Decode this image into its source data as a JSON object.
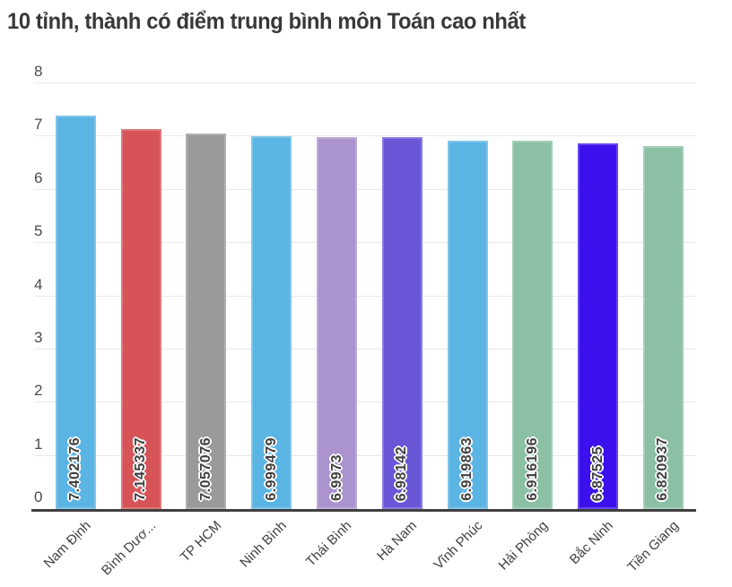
{
  "title": "10 tỉnh, thành có điểm trung bình môn Toán cao nhất",
  "chart_data": {
    "type": "bar",
    "title": "10 tỉnh, thành có điểm trung bình môn Toán cao nhất",
    "categories": [
      "Nam Định",
      "Bình Dươ...",
      "TP HCM",
      "Ninh Bình",
      "Thái Bình",
      "Hà Nam",
      "Vĩnh Phúc",
      "Hải Phòng",
      "Bắc Ninh",
      "Tiền Giang"
    ],
    "values": [
      7.402176,
      7.145337,
      7.057076,
      6.999479,
      6.9973,
      6.98142,
      6.919863,
      6.916196,
      6.87525,
      6.820937
    ],
    "value_labels": [
      "7.402176",
      "7.145337",
      "7.057076",
      "6.999479",
      "6.9973",
      "6.98142",
      "6.919863",
      "6.916196",
      "6.87525",
      "6.820937"
    ],
    "bar_colors": [
      "#5bb5e4",
      "#d65458",
      "#9a9a9a",
      "#5bb5e4",
      "#ab93ce",
      "#6956d6",
      "#5bb5e4",
      "#8bc0a5",
      "#3b10ec",
      "#8bc0a5"
    ],
    "xlabel": "",
    "ylabel": "",
    "ylim": [
      0,
      8
    ],
    "yticks": [
      0,
      1,
      2,
      3,
      4,
      5,
      6,
      7,
      8
    ],
    "grid": true,
    "legend": "none",
    "x_label_rotation": -45,
    "value_label_rotation": -90,
    "value_label_position": "inside-bottom"
  },
  "colors": {
    "background": "#ffffff",
    "axis_line": "#404040",
    "gridline": "#e8e8e8",
    "tick_label": "#4a4a4a",
    "value_label": "#3f3f3f",
    "title": "#383838"
  }
}
